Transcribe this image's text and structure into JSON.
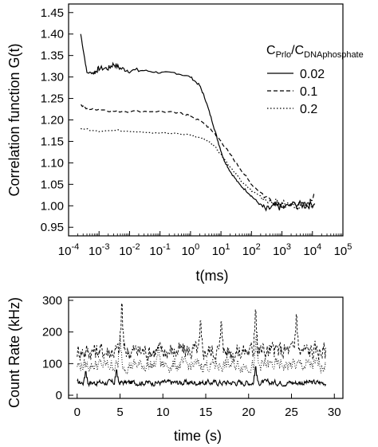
{
  "chart_data": [
    {
      "type": "line",
      "xscale": "log",
      "xlabel": "t(ms)",
      "ylabel": "Correlation function G(t)",
      "xlim": [
        0.0001,
        100000
      ],
      "ylim": [
        0.93,
        1.47
      ],
      "xticks": [
        0.0001,
        0.001,
        0.01,
        0.1,
        1,
        10,
        100,
        1000,
        10000,
        100000
      ],
      "xtick_labels": [
        {
          "base": "10",
          "exp": "-4"
        },
        {
          "base": "10",
          "exp": "-3"
        },
        {
          "base": "10",
          "exp": "-2"
        },
        {
          "base": "10",
          "exp": "-1"
        },
        {
          "base": "10",
          "exp": "0"
        },
        {
          "base": "10",
          "exp": "1"
        },
        {
          "base": "10",
          "exp": "2"
        },
        {
          "base": "10",
          "exp": "3"
        },
        {
          "base": "10",
          "exp": "4"
        },
        {
          "base": "10",
          "exp": "5"
        }
      ],
      "yticks": [
        0.95,
        1.0,
        1.05,
        1.1,
        1.15,
        1.2,
        1.25,
        1.3,
        1.35,
        1.4,
        1.45
      ],
      "ytick_labels": [
        "0.95",
        "1.00",
        "1.05",
        "1.10",
        "1.15",
        "1.20",
        "1.25",
        "1.30",
        "1.35",
        "1.40",
        "1.45"
      ],
      "legend": {
        "title_base": "C",
        "title_sub1": "Prlo",
        "title_slash": "/C",
        "title_sub2": "DNAphosphate",
        "placement": "right"
      },
      "series": [
        {
          "name": "0.02",
          "style": "solid",
          "points": [
            [
              0.00025,
              1.4
            ],
            [
              0.0004,
              1.31
            ],
            [
              0.0007,
              1.31
            ],
            [
              0.001,
              1.32
            ],
            [
              0.002,
              1.32
            ],
            [
              0.003,
              1.33
            ],
            [
              0.005,
              1.32
            ],
            [
              0.01,
              1.315
            ],
            [
              0.03,
              1.315
            ],
            [
              0.1,
              1.31
            ],
            [
              0.3,
              1.31
            ],
            [
              1,
              1.3
            ],
            [
              2,
              1.28
            ],
            [
              3,
              1.25
            ],
            [
              5,
              1.2
            ],
            [
              8,
              1.15
            ],
            [
              12,
              1.11
            ],
            [
              20,
              1.08
            ],
            [
              40,
              1.05
            ],
            [
              80,
              1.03
            ],
            [
              150,
              1.01
            ],
            [
              300,
              0.99
            ],
            [
              600,
              1.0
            ],
            [
              1000,
              0.995
            ],
            [
              3000,
              1.005
            ],
            [
              6000,
              1.0
            ],
            [
              12000,
              1.005
            ]
          ]
        },
        {
          "name": "0.1",
          "style": "dashed",
          "points": [
            [
              0.00025,
              1.235
            ],
            [
              0.0004,
              1.225
            ],
            [
              0.001,
              1.225
            ],
            [
              0.003,
              1.22
            ],
            [
              0.01,
              1.22
            ],
            [
              0.1,
              1.22
            ],
            [
              0.5,
              1.215
            ],
            [
              1,
              1.21
            ],
            [
              3,
              1.19
            ],
            [
              6,
              1.17
            ],
            [
              10,
              1.15
            ],
            [
              20,
              1.12
            ],
            [
              50,
              1.08
            ],
            [
              100,
              1.05
            ],
            [
              300,
              1.02
            ],
            [
              1000,
              1.005
            ],
            [
              3000,
              1.0
            ],
            [
              6000,
              1.005
            ],
            [
              12000,
              1.02
            ]
          ]
        },
        {
          "name": "0.2",
          "style": "dotted",
          "points": [
            [
              0.00025,
              1.18
            ],
            [
              0.001,
              1.175
            ],
            [
              0.01,
              1.175
            ],
            [
              0.1,
              1.17
            ],
            [
              1,
              1.165
            ],
            [
              3,
              1.155
            ],
            [
              6,
              1.14
            ],
            [
              10,
              1.12
            ],
            [
              20,
              1.09
            ],
            [
              50,
              1.055
            ],
            [
              100,
              1.035
            ],
            [
              300,
              1.015
            ],
            [
              1000,
              1.005
            ],
            [
              3000,
              1.0
            ],
            [
              12000,
              1.005
            ]
          ]
        }
      ]
    },
    {
      "type": "line",
      "xlabel": "time (s)",
      "ylabel": "Count Rate (kHz)",
      "xlim": [
        -1,
        31
      ],
      "ylim": [
        -10,
        310
      ],
      "xticks": [
        0,
        5,
        10,
        15,
        20,
        25,
        30
      ],
      "xtick_labels": [
        "0",
        "5",
        "10",
        "15",
        "20",
        "25",
        "30"
      ],
      "yticks": [
        0,
        100,
        200,
        300
      ],
      "ytick_labels": [
        "0",
        "100",
        "200",
        "300"
      ],
      "series": [
        {
          "style": "solid",
          "t_range": [
            0,
            29
          ],
          "mean": 40,
          "spread": 15,
          "peaks": [
            [
              1.0,
              75
            ],
            [
              4.6,
              80
            ],
            [
              20.8,
              90
            ]
          ]
        },
        {
          "style": "dashed",
          "t_range": [
            0,
            29
          ],
          "mean": 140,
          "spread": 50,
          "peaks": [
            [
              5.2,
              290
            ],
            [
              20.8,
              270
            ],
            [
              25.6,
              255
            ],
            [
              14.4,
              235
            ],
            [
              16.8,
              232
            ]
          ]
        },
        {
          "style": "dotted",
          "t_range": [
            0,
            29
          ],
          "mean": 95,
          "spread": 35,
          "peaks": [
            [
              5.0,
              190
            ],
            [
              9.5,
              160
            ],
            [
              20.9,
              190
            ]
          ]
        }
      ]
    }
  ]
}
